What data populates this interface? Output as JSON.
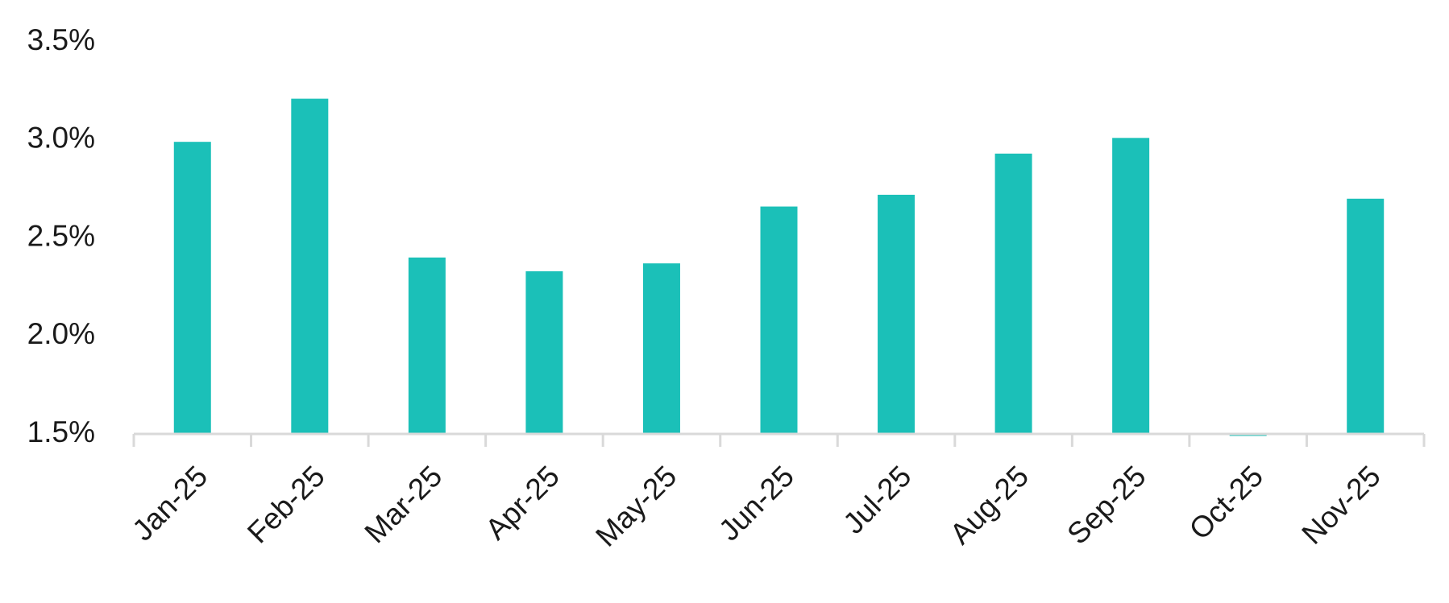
{
  "chart_data": {
    "type": "bar",
    "categories": [
      "Jan-25",
      "Feb-25",
      "Mar-25",
      "Apr-25",
      "May-25",
      "Jun-25",
      "Jul-25",
      "Aug-25",
      "Sep-25",
      "Oct-25",
      "Nov-25"
    ],
    "values": [
      2.99,
      3.21,
      2.4,
      2.33,
      2.37,
      2.66,
      2.72,
      2.93,
      3.01,
      1.49,
      2.7
    ],
    "color": "#1bc0b8",
    "ylim": [
      1.5,
      3.5
    ],
    "yticks": [
      {
        "value": 1.5,
        "label": "1.5%"
      },
      {
        "value": 2.0,
        "label": "2.0%"
      },
      {
        "value": 2.5,
        "label": "2.5%"
      },
      {
        "value": 3.0,
        "label": "3.0%"
      },
      {
        "value": 3.5,
        "label": "3.5%"
      }
    ],
    "grid": false
  }
}
